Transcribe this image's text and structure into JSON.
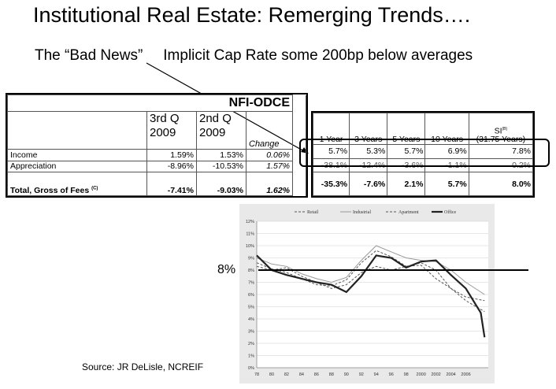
{
  "title": "Institutional Real Estate: Remerging Trends….",
  "subtitle": {
    "bad_news": "The “Bad News”",
    "implicit": "Implicit Cap Rate some 200bp below averages"
  },
  "odce_table": {
    "title": "NFI-ODCE",
    "col_q3": {
      "line1": "3rd Q",
      "line2": "2009"
    },
    "col_q2": {
      "line1": "2nd Q",
      "line2": "2009"
    },
    "col_change": "Change",
    "rows": [
      {
        "label": "Income",
        "q3": "1.59%",
        "q2": "1.53%",
        "change": "0.06%"
      },
      {
        "label": "Appreciation",
        "q3": "-8.96%",
        "q2": "-10.53%",
        "change": "1.57%"
      },
      {
        "label": "Total, Gross of Fees",
        "label_sup": "(C)",
        "q3": "-7.41%",
        "q2": "-9.03%",
        "change": "1.62%"
      }
    ]
  },
  "perf_table": {
    "headers": [
      "1 Year",
      "3 Years",
      "5 Years",
      "10 Years",
      "SI",
      "(31.75 Years)"
    ],
    "si_sup": "(B)",
    "rows": [
      {
        "values": [
          "5.7%",
          "5.3%",
          "5.7%",
          "6.9%",
          "7.8%"
        ]
      },
      {
        "values": [
          "-38.1%",
          "-12.4%",
          "-3.6%",
          "-1.1%",
          "0.2%"
        ]
      },
      {
        "values": [
          "-35.3%",
          "-7.6%",
          "2.1%",
          "5.7%",
          "8.0%"
        ]
      }
    ]
  },
  "label_8": "8%",
  "source": "Source: JR DeLisle, NCREIF",
  "chart_data": {
    "type": "line",
    "legend": [
      "Retail",
      "Industrial",
      "Apartment",
      "Office"
    ],
    "legend_position": "top",
    "x_ticks": [
      "78",
      "80",
      "82",
      "84",
      "86",
      "88",
      "90",
      "92",
      "94",
      "96",
      "98",
      "2000",
      "2002",
      "2004",
      "2006"
    ],
    "y_ticks": [
      "0%",
      "1%",
      "2%",
      "3%",
      "4%",
      "5%",
      "6%",
      "7%",
      "8%",
      "9%",
      "10%",
      "11%",
      "12%"
    ],
    "ylim": [
      0,
      12
    ],
    "grid": true,
    "reference_line": 8,
    "series": [
      {
        "name": "Retail",
        "style": "dashed",
        "x": [
          1978,
          1980,
          1982,
          1984,
          1986,
          1988,
          1990,
          1992,
          1994,
          1996,
          1998,
          2000,
          2002,
          2004,
          2006,
          2008.5
        ],
        "y": [
          8.3,
          8.0,
          8.2,
          7.5,
          7.0,
          6.5,
          6.8,
          7.8,
          8.3,
          8.0,
          8.3,
          8.6,
          8.0,
          6.5,
          5.8,
          5.5
        ]
      },
      {
        "name": "Industrial",
        "style": "thin",
        "x": [
          1978,
          1980,
          1982,
          1984,
          1986,
          1988,
          1990,
          1992,
          1994,
          1996,
          1998,
          2000,
          2002,
          2004,
          2006,
          2008.5
        ],
        "y": [
          9.0,
          8.5,
          8.3,
          7.7,
          7.3,
          7.0,
          7.4,
          8.8,
          10.0,
          9.5,
          9.0,
          8.8,
          8.7,
          8.0,
          7.0,
          6.0
        ]
      },
      {
        "name": "Apartment",
        "style": "dashed",
        "x": [
          1978,
          1980,
          1982,
          1984,
          1986,
          1988,
          1990,
          1992,
          1994,
          1996,
          1998,
          2000,
          2002,
          2004,
          2006,
          2008.5
        ],
        "y": [
          8.6,
          8.1,
          7.8,
          7.3,
          6.8,
          6.7,
          7.2,
          8.6,
          9.6,
          9.1,
          8.3,
          8.4,
          7.3,
          6.5,
          5.5,
          4.6
        ]
      },
      {
        "name": "Office",
        "style": "bold",
        "x": [
          1978,
          1980,
          1982,
          1984,
          1986,
          1988,
          1990,
          1992,
          1994,
          1996,
          1998,
          2000,
          2002,
          2004,
          2006,
          2008,
          2008.5
        ],
        "y": [
          9.2,
          8.0,
          7.6,
          7.3,
          7.0,
          6.8,
          6.2,
          7.5,
          9.2,
          9.0,
          8.2,
          8.7,
          8.8,
          7.6,
          6.5,
          4.5,
          2.5
        ]
      }
    ]
  }
}
